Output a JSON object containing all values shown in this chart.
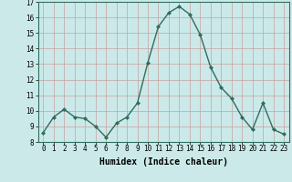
{
  "xlabel": "Humidex (Indice chaleur)",
  "x": [
    0,
    1,
    2,
    3,
    4,
    5,
    6,
    7,
    8,
    9,
    10,
    11,
    12,
    13,
    14,
    15,
    16,
    17,
    18,
    19,
    20,
    21,
    22,
    23
  ],
  "y": [
    8.6,
    9.6,
    10.1,
    9.6,
    9.5,
    9.0,
    8.3,
    9.2,
    9.6,
    10.5,
    13.1,
    15.4,
    16.3,
    16.7,
    16.2,
    14.9,
    12.8,
    11.5,
    10.8,
    9.6,
    8.8,
    10.5,
    8.8,
    8.5
  ],
  "line_color": "#2e6e5e",
  "marker": "D",
  "marker_size": 2.0,
  "bg_color": "#cce9e9",
  "grid_color_major": "#c8a0a0",
  "grid_color_minor": "#c8a0a0",
  "ylim": [
    8,
    17
  ],
  "yticks": [
    8,
    9,
    10,
    11,
    12,
    13,
    14,
    15,
    16,
    17
  ],
  "xticks": [
    0,
    1,
    2,
    3,
    4,
    5,
    6,
    7,
    8,
    9,
    10,
    11,
    12,
    13,
    14,
    15,
    16,
    17,
    18,
    19,
    20,
    21,
    22,
    23
  ],
  "tick_fontsize": 5.5,
  "xlabel_fontsize": 7.0,
  "line_width": 1.0
}
